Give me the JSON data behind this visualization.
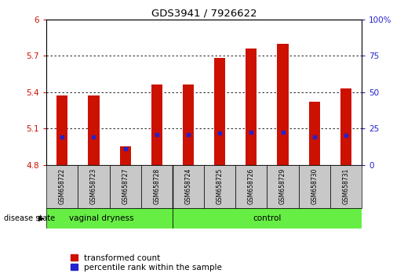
{
  "title": "GDS3941 / 7926622",
  "samples": [
    "GSM658722",
    "GSM658723",
    "GSM658727",
    "GSM658728",
    "GSM658724",
    "GSM658725",
    "GSM658726",
    "GSM658729",
    "GSM658730",
    "GSM658731"
  ],
  "bar_values": [
    5.37,
    5.37,
    4.95,
    5.46,
    5.46,
    5.68,
    5.76,
    5.8,
    5.32,
    5.43
  ],
  "blue_values": [
    5.03,
    5.03,
    4.93,
    5.05,
    5.05,
    5.06,
    5.07,
    5.07,
    5.03,
    5.04
  ],
  "ymin": 4.8,
  "ymax": 6.0,
  "yticks_left": [
    4.8,
    5.1,
    5.4,
    5.7,
    6.0
  ],
  "ytick_labels_left": [
    "4.8",
    "5.1",
    "5.4",
    "5.7",
    "6"
  ],
  "yticks_right_pct": [
    0,
    25,
    50,
    75,
    100
  ],
  "ytick_labels_right": [
    "0",
    "25",
    "50",
    "75",
    "100%"
  ],
  "bar_color": "#cc1100",
  "blue_color": "#2222cc",
  "bar_bottom": 4.8,
  "bar_width": 0.35,
  "group1_label": "vaginal dryness",
  "group2_label": "control",
  "group_sep": 3.5,
  "group_bg_color": "#66ee44",
  "sample_bg_color": "#c8c8c8",
  "legend_red_label": "transformed count",
  "legend_blue_label": "percentile rank within the sample",
  "disease_state_label": "disease state"
}
